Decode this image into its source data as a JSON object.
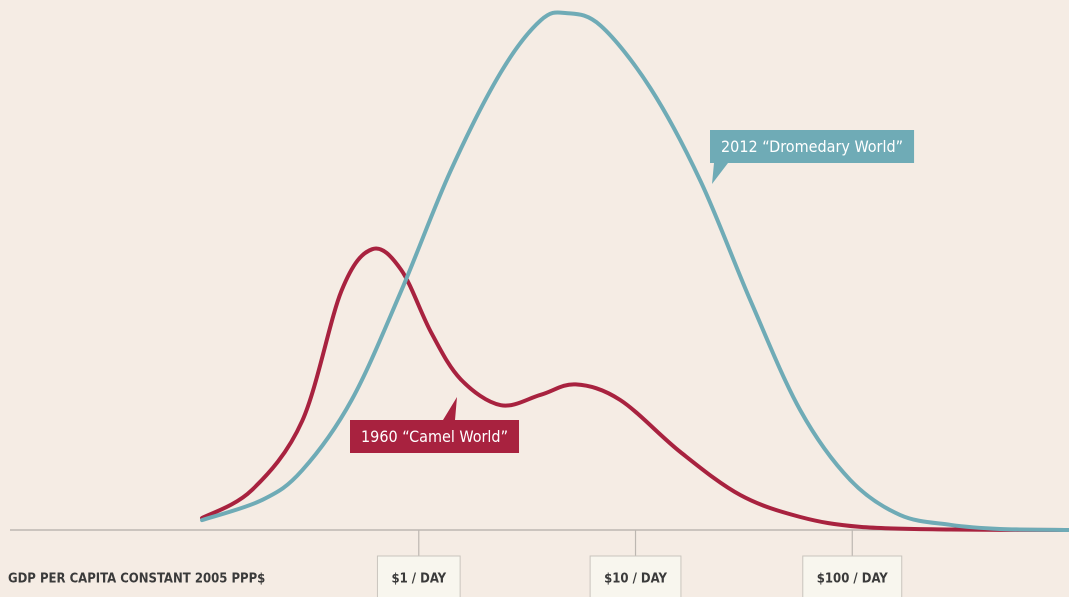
{
  "chart_data": {
    "type": "line",
    "x_label": "GDP PER CAPITA CONSTANT 2005 PPP$",
    "log_x": true,
    "xlim": [
      0.013,
      1000
    ],
    "ylim": [
      0,
      100
    ],
    "xticks": [
      {
        "value": 1,
        "label": "$1 / DAY"
      },
      {
        "value": 10,
        "label": "$10 / DAY"
      },
      {
        "value": 100,
        "label": "$100 / DAY"
      }
    ],
    "series": [
      {
        "name": "1960 “Camel World”",
        "color": "#a8223f",
        "x": [
          0.1,
          0.17,
          0.29,
          0.44,
          0.61,
          0.83,
          1.14,
          1.56,
          2.39,
          3.65,
          5.3,
          8.5,
          16.1,
          30.5,
          57.6,
          109,
          283,
          1000
        ],
        "values": [
          2.3,
          7.7,
          21,
          46,
          54,
          50,
          38,
          29,
          24,
          26,
          28,
          25,
          15,
          6.7,
          2.5,
          0.6,
          0.1,
          0
        ]
      },
      {
        "name": "2012 “Dromedary World”",
        "color": "#6fabb6",
        "x": [
          0.1,
          0.19,
          0.29,
          0.49,
          0.83,
          1.4,
          2.39,
          3.65,
          4.8,
          6.9,
          11.7,
          20,
          34,
          57.6,
          98,
          166,
          283,
          480,
          1000
        ],
        "values": [
          1.9,
          5.8,
          11.5,
          25,
          46,
          69,
          88,
          98,
          99.4,
          97,
          85,
          67,
          44,
          23,
          9.6,
          2.9,
          1,
          0.2,
          0
        ]
      }
    ]
  }
}
